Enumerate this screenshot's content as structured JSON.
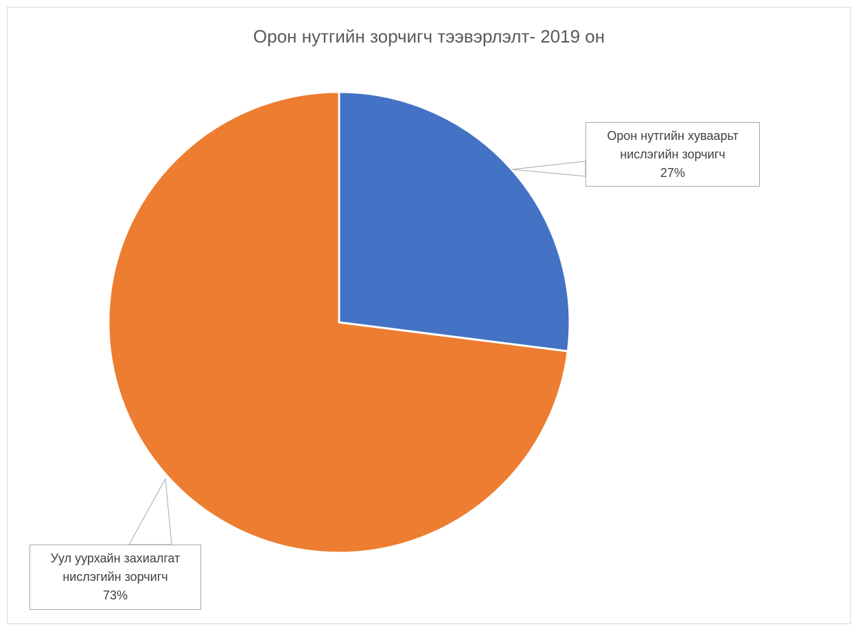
{
  "chart_data": {
    "type": "pie",
    "title": "Орон нутгийн зорчигч тээвэрлэлт- 2019 он",
    "categories": [
      "Орон нутгийн хуваарьт нислэгийн зорчигч",
      "Уул уурхайн захиалгат нислэгийн зорчигч"
    ],
    "values": [
      27,
      73
    ],
    "data_labels": [
      {
        "line1": "Орон нутгийн хуваарьт",
        "line2": "нислэгийн зорчигч",
        "percent": "27%"
      },
      {
        "line1": "Уул уурхайн захиалгат",
        "line2": "нислэгийн зорчигч",
        "percent": "73%"
      }
    ],
    "colors": [
      "#4472c4",
      "#ed7d31"
    ],
    "legend": "none",
    "start_angle": "12 o'clock, clockwise"
  }
}
